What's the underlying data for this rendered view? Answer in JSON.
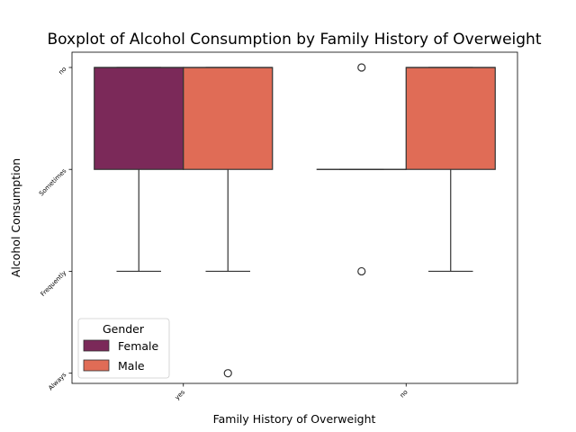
{
  "chart_data": {
    "type": "boxplot",
    "title": "Boxplot of Alcohol Consumption by Family History of Overweight",
    "xlabel": "Family History of Overweight",
    "ylabel": "Alcohol Consumption",
    "categories": [
      "yes",
      "no"
    ],
    "y_ticks": [
      "no",
      "Sometimes",
      "Frequently",
      "Always"
    ],
    "ylim": [
      -0.15,
      3.1
    ],
    "legend": {
      "title": "Gender",
      "position": "lower-left"
    },
    "series": [
      {
        "name": "Female",
        "color": "#7b2959",
        "boxes": [
          {
            "category": "yes",
            "whisker_low": 0,
            "q1": 0,
            "median": 0,
            "q3": 1,
            "whisker_high": 2,
            "outliers": []
          },
          {
            "category": "no",
            "whisker_low": 1,
            "q1": 1,
            "median": 1,
            "q3": 1,
            "whisker_high": 1,
            "outliers": [
              0,
              2
            ]
          }
        ]
      },
      {
        "name": "Male",
        "color": "#e06c56",
        "boxes": [
          {
            "category": "yes",
            "whisker_low": 0,
            "q1": 0,
            "median": 0,
            "q3": 1,
            "whisker_high": 2,
            "outliers": [
              3
            ]
          },
          {
            "category": "no",
            "whisker_low": 0,
            "q1": 0,
            "median": 0,
            "q3": 1,
            "whisker_high": 2,
            "outliers": []
          }
        ]
      }
    ]
  }
}
